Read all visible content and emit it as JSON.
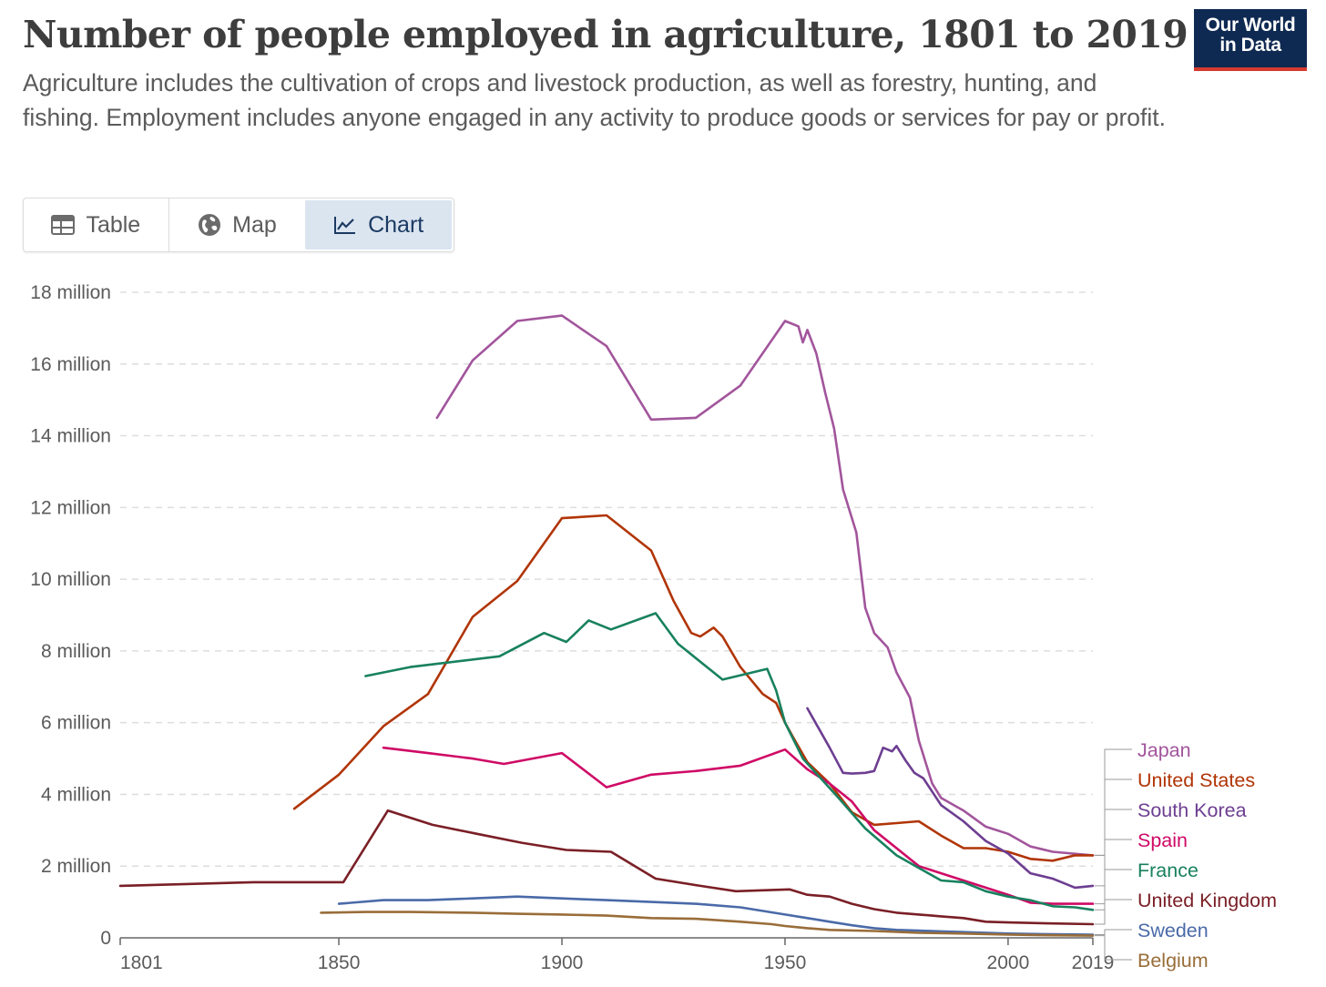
{
  "header": {
    "title": "Number of people employed in agriculture, 1801 to 2019",
    "subtitle": "Agriculture includes the cultivation of crops and livestock production, as well as forestry, hunting, and fishing. Employment includes anyone engaged in any activity to produce goods or services for pay or profit."
  },
  "logo": {
    "line1": "Our World",
    "line2": "in Data"
  },
  "tabs": {
    "table_label": "Table",
    "map_label": "Map",
    "chart_label": "Chart",
    "active": "Chart"
  },
  "colors": {
    "logo_bg": "#0f2a52",
    "logo_accent": "#d63a2f",
    "active_tab_bg": "#dbe5f0",
    "grid": "#dddddd",
    "axis": "#666666"
  },
  "chart_data": {
    "type": "line",
    "xlim": [
      1801,
      2019
    ],
    "ylim": [
      0,
      18000000
    ],
    "x_ticks": [
      1801,
      1850,
      1900,
      1950,
      2000,
      2019
    ],
    "y_ticks": [
      {
        "value": 0,
        "label": "0"
      },
      {
        "value": 2000000,
        "label": "2 million"
      },
      {
        "value": 4000000,
        "label": "4 million"
      },
      {
        "value": 6000000,
        "label": "6 million"
      },
      {
        "value": 8000000,
        "label": "8 million"
      },
      {
        "value": 10000000,
        "label": "10 million"
      },
      {
        "value": 12000000,
        "label": "12 million"
      },
      {
        "value": 14000000,
        "label": "14 million"
      },
      {
        "value": 16000000,
        "label": "16 million"
      },
      {
        "value": 18000000,
        "label": "18 million"
      }
    ],
    "grid": "horizontal-dashed",
    "legend": "right-end-labels",
    "series": [
      {
        "name": "Japan",
        "color": "#a2559c",
        "points": [
          [
            1872,
            14.5
          ],
          [
            1880,
            16.1
          ],
          [
            1890,
            17.2
          ],
          [
            1900,
            17.35
          ],
          [
            1910,
            16.5
          ],
          [
            1920,
            14.45
          ],
          [
            1930,
            14.5
          ],
          [
            1940,
            15.4
          ],
          [
            1950,
            17.2
          ],
          [
            1953,
            17.05
          ],
          [
            1954,
            16.6
          ],
          [
            1955,
            16.95
          ],
          [
            1957,
            16.3
          ],
          [
            1959,
            15.2
          ],
          [
            1961,
            14.2
          ],
          [
            1963,
            12.5
          ],
          [
            1966,
            11.3
          ],
          [
            1968,
            9.2
          ],
          [
            1970,
            8.5
          ],
          [
            1973,
            8.1
          ],
          [
            1975,
            7.4
          ],
          [
            1978,
            6.7
          ],
          [
            1980,
            5.5
          ],
          [
            1983,
            4.3
          ],
          [
            1985,
            3.9
          ],
          [
            1990,
            3.55
          ],
          [
            1995,
            3.1
          ],
          [
            2000,
            2.9
          ],
          [
            2005,
            2.55
          ],
          [
            2010,
            2.4
          ],
          [
            2019,
            2.3
          ]
        ]
      },
      {
        "name": "United States",
        "color": "#b13507",
        "points": [
          [
            1840,
            3.6
          ],
          [
            1850,
            4.55
          ],
          [
            1860,
            5.9
          ],
          [
            1870,
            6.8
          ],
          [
            1880,
            8.95
          ],
          [
            1890,
            9.95
          ],
          [
            1900,
            11.7
          ],
          [
            1910,
            11.78
          ],
          [
            1920,
            10.8
          ],
          [
            1925,
            9.4
          ],
          [
            1929,
            8.5
          ],
          [
            1931,
            8.4
          ],
          [
            1934,
            8.65
          ],
          [
            1936,
            8.4
          ],
          [
            1940,
            7.55
          ],
          [
            1945,
            6.8
          ],
          [
            1948,
            6.55
          ],
          [
            1950,
            6.0
          ],
          [
            1952,
            5.55
          ],
          [
            1955,
            4.9
          ],
          [
            1960,
            4.3
          ],
          [
            1965,
            3.5
          ],
          [
            1970,
            3.15
          ],
          [
            1975,
            3.2
          ],
          [
            1980,
            3.25
          ],
          [
            1985,
            2.85
          ],
          [
            1990,
            2.5
          ],
          [
            1995,
            2.5
          ],
          [
            2000,
            2.4
          ],
          [
            2005,
            2.2
          ],
          [
            2010,
            2.15
          ],
          [
            2015,
            2.3
          ],
          [
            2019,
            2.3
          ]
        ]
      },
      {
        "name": "South Korea",
        "color": "#6d3e91",
        "points": [
          [
            1955,
            6.4
          ],
          [
            1960,
            5.3
          ],
          [
            1963,
            4.6
          ],
          [
            1965,
            4.58
          ],
          [
            1968,
            4.6
          ],
          [
            1970,
            4.65
          ],
          [
            1972,
            5.3
          ],
          [
            1974,
            5.2
          ],
          [
            1975,
            5.35
          ],
          [
            1977,
            4.95
          ],
          [
            1979,
            4.6
          ],
          [
            1981,
            4.45
          ],
          [
            1985,
            3.7
          ],
          [
            1990,
            3.25
          ],
          [
            1995,
            2.7
          ],
          [
            2000,
            2.35
          ],
          [
            2005,
            1.8
          ],
          [
            2010,
            1.65
          ],
          [
            2012,
            1.55
          ],
          [
            2015,
            1.4
          ],
          [
            2019,
            1.45
          ]
        ]
      },
      {
        "name": "Spain",
        "color": "#cf0a66",
        "points": [
          [
            1860,
            5.3
          ],
          [
            1870,
            5.15
          ],
          [
            1880,
            5.0
          ],
          [
            1887,
            4.85
          ],
          [
            1900,
            5.15
          ],
          [
            1910,
            4.2
          ],
          [
            1920,
            4.55
          ],
          [
            1930,
            4.65
          ],
          [
            1940,
            4.8
          ],
          [
            1950,
            5.25
          ],
          [
            1955,
            4.7
          ],
          [
            1960,
            4.3
          ],
          [
            1965,
            3.8
          ],
          [
            1970,
            3.0
          ],
          [
            1975,
            2.5
          ],
          [
            1980,
            2.0
          ],
          [
            1985,
            1.8
          ],
          [
            1990,
            1.6
          ],
          [
            1995,
            1.4
          ],
          [
            2000,
            1.2
          ],
          [
            2005,
            0.98
          ],
          [
            2010,
            0.95
          ],
          [
            2019,
            0.95
          ]
        ]
      },
      {
        "name": "France",
        "color": "#18815f",
        "points": [
          [
            1856,
            7.3
          ],
          [
            1866,
            7.55
          ],
          [
            1886,
            7.85
          ],
          [
            1896,
            8.5
          ],
          [
            1901,
            8.25
          ],
          [
            1906,
            8.85
          ],
          [
            1911,
            8.6
          ],
          [
            1921,
            9.05
          ],
          [
            1926,
            8.2
          ],
          [
            1936,
            7.2
          ],
          [
            1946,
            7.5
          ],
          [
            1948,
            6.9
          ],
          [
            1950,
            6.0
          ],
          [
            1954,
            5.0
          ],
          [
            1962,
            3.9
          ],
          [
            1968,
            3.05
          ],
          [
            1975,
            2.3
          ],
          [
            1980,
            1.95
          ],
          [
            1985,
            1.6
          ],
          [
            1990,
            1.55
          ],
          [
            1995,
            1.3
          ],
          [
            2000,
            1.15
          ],
          [
            2005,
            1.05
          ],
          [
            2010,
            0.88
          ],
          [
            2015,
            0.85
          ],
          [
            2019,
            0.78
          ]
        ]
      },
      {
        "name": "United Kingdom",
        "color": "#7a1f26",
        "points": [
          [
            1801,
            1.45
          ],
          [
            1831,
            1.55
          ],
          [
            1851,
            1.55
          ],
          [
            1861,
            3.55
          ],
          [
            1871,
            3.15
          ],
          [
            1881,
            2.9
          ],
          [
            1891,
            2.65
          ],
          [
            1901,
            2.45
          ],
          [
            1911,
            2.4
          ],
          [
            1921,
            1.65
          ],
          [
            1931,
            1.45
          ],
          [
            1939,
            1.3
          ],
          [
            1951,
            1.35
          ],
          [
            1955,
            1.2
          ],
          [
            1960,
            1.15
          ],
          [
            1965,
            0.95
          ],
          [
            1970,
            0.8
          ],
          [
            1975,
            0.7
          ],
          [
            1980,
            0.65
          ],
          [
            1985,
            0.6
          ],
          [
            1990,
            0.55
          ],
          [
            1995,
            0.45
          ],
          [
            2000,
            0.43
          ],
          [
            2010,
            0.4
          ],
          [
            2019,
            0.38
          ]
        ]
      },
      {
        "name": "Sweden",
        "color": "#4a6aa8",
        "points": [
          [
            1850,
            0.95
          ],
          [
            1860,
            1.05
          ],
          [
            1870,
            1.05
          ],
          [
            1880,
            1.1
          ],
          [
            1890,
            1.15
          ],
          [
            1900,
            1.1
          ],
          [
            1910,
            1.05
          ],
          [
            1920,
            1.0
          ],
          [
            1930,
            0.95
          ],
          [
            1940,
            0.85
          ],
          [
            1950,
            0.65
          ],
          [
            1955,
            0.55
          ],
          [
            1960,
            0.45
          ],
          [
            1965,
            0.35
          ],
          [
            1970,
            0.27
          ],
          [
            1975,
            0.22
          ],
          [
            1980,
            0.2
          ],
          [
            1985,
            0.18
          ],
          [
            1990,
            0.16
          ],
          [
            2000,
            0.12
          ],
          [
            2010,
            0.1
          ],
          [
            2019,
            0.09
          ]
        ]
      },
      {
        "name": "Belgium",
        "color": "#996d39",
        "points": [
          [
            1846,
            0.7
          ],
          [
            1856,
            0.72
          ],
          [
            1866,
            0.72
          ],
          [
            1880,
            0.7
          ],
          [
            1890,
            0.67
          ],
          [
            1900,
            0.65
          ],
          [
            1910,
            0.62
          ],
          [
            1920,
            0.55
          ],
          [
            1930,
            0.53
          ],
          [
            1940,
            0.45
          ],
          [
            1947,
            0.38
          ],
          [
            1950,
            0.33
          ],
          [
            1955,
            0.27
          ],
          [
            1960,
            0.22
          ],
          [
            1970,
            0.19
          ],
          [
            1980,
            0.14
          ],
          [
            1990,
            0.12
          ],
          [
            2000,
            0.09
          ],
          [
            2010,
            0.07
          ],
          [
            2019,
            0.06
          ]
        ]
      }
    ]
  }
}
